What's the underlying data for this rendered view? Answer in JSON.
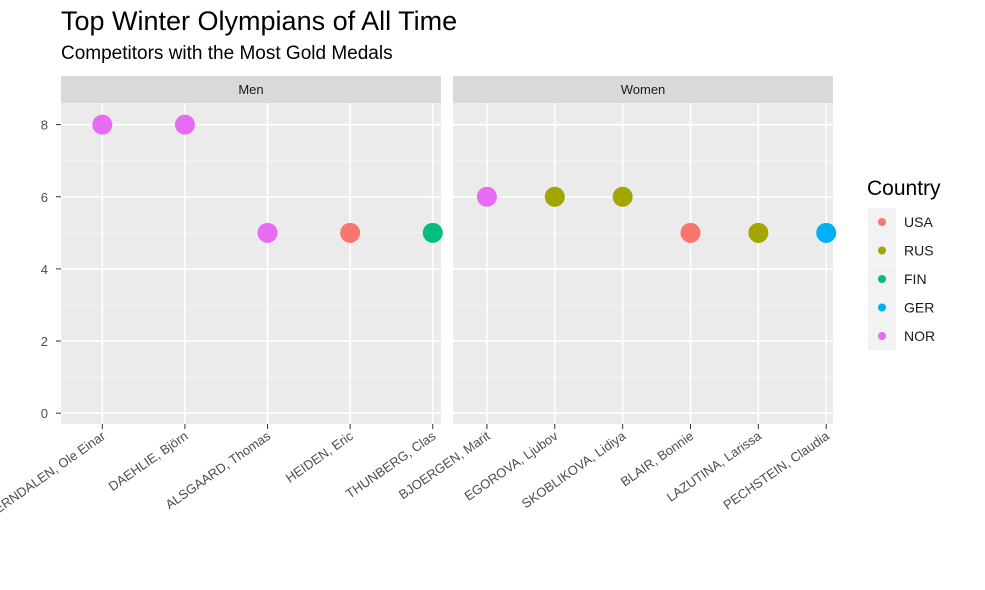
{
  "chart_data": {
    "type": "scatter",
    "title": "Top Winter Olympians of All Time",
    "subtitle": "Competitors with the Most Gold Medals",
    "xlabel": "",
    "ylabel": "",
    "ylim": [
      -0.3,
      8.6
    ],
    "yticks": [
      0,
      2,
      4,
      6,
      8
    ],
    "grid": true,
    "legend": {
      "title": "Country",
      "placement": "right",
      "entries": [
        {
          "label": "USA",
          "color": "#F8766D"
        },
        {
          "label": "RUS",
          "color": "#A3A500"
        },
        {
          "label": "FIN",
          "color": "#00BF7D"
        },
        {
          "label": "GER",
          "color": "#00B0F6"
        },
        {
          "label": "NOR",
          "color": "#E76BF3"
        }
      ]
    },
    "panels": [
      {
        "facet": "Men",
        "points": [
          {
            "name": "BJOERNDALEN, Ole Einar",
            "country": "NOR",
            "gold": 8
          },
          {
            "name": "DAEHLIE, Björn",
            "country": "NOR",
            "gold": 8
          },
          {
            "name": "ALSGAARD, Thomas",
            "country": "NOR",
            "gold": 5
          },
          {
            "name": "HEIDEN, Eric",
            "country": "USA",
            "gold": 5
          },
          {
            "name": "THUNBERG, Clas",
            "country": "FIN",
            "gold": 5
          }
        ]
      },
      {
        "facet": "Women",
        "points": [
          {
            "name": "BJOERGEN, Marit",
            "country": "NOR",
            "gold": 6
          },
          {
            "name": "EGOROVA, Ljubov",
            "country": "RUS",
            "gold": 6
          },
          {
            "name": "SKOBLIKOVA, Lidiya",
            "country": "RUS",
            "gold": 6
          },
          {
            "name": "BLAIR, Bonnie",
            "country": "USA",
            "gold": 5
          },
          {
            "name": "LAZUTINA, Larissa",
            "country": "RUS",
            "gold": 5
          },
          {
            "name": "PECHSTEIN, Claudia",
            "country": "GER",
            "gold": 5
          }
        ]
      }
    ]
  }
}
